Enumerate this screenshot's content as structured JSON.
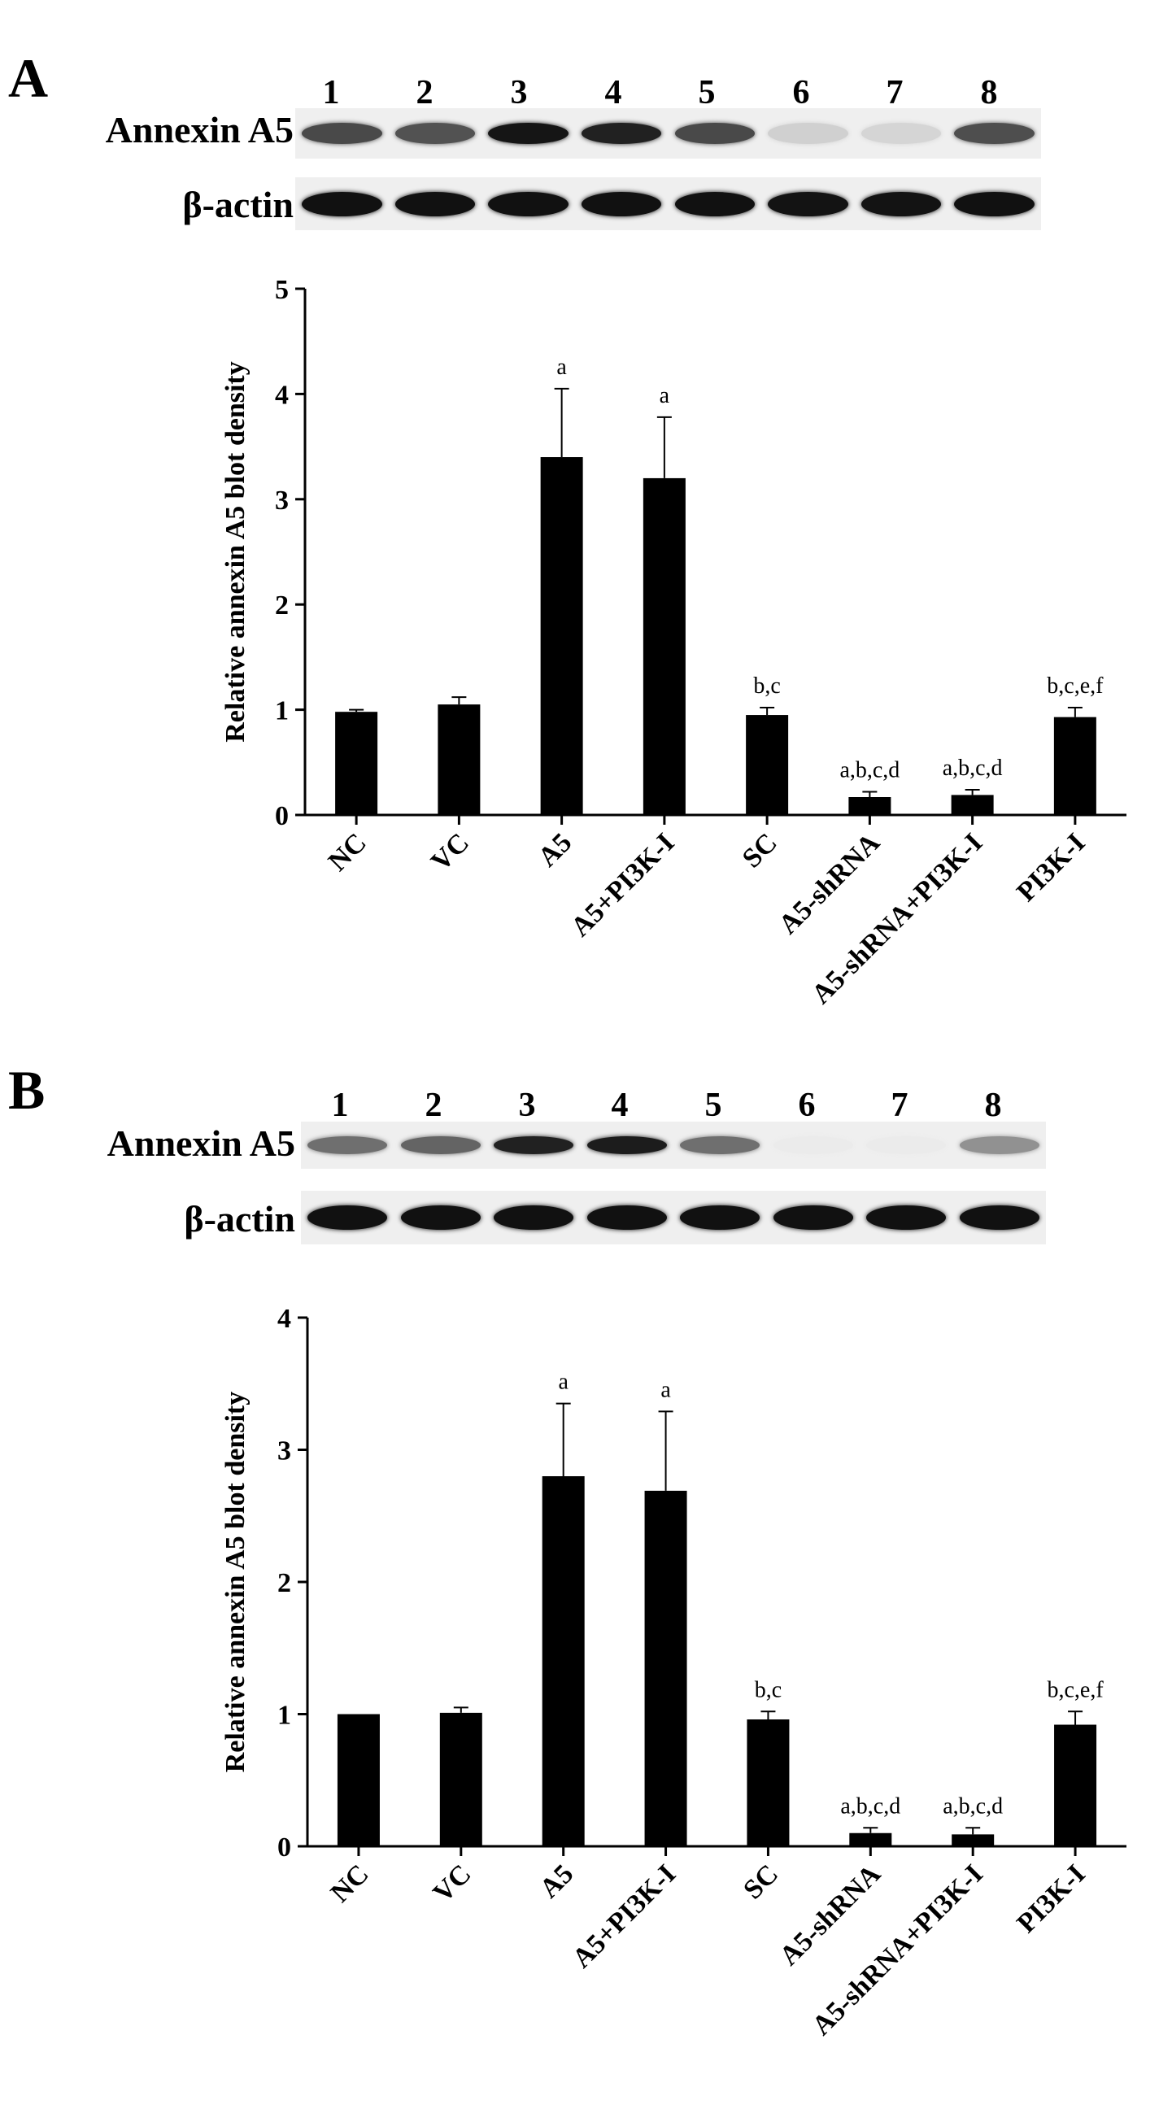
{
  "panels": [
    {
      "letter": "A",
      "lanes": [
        "1",
        "2",
        "3",
        "4",
        "5",
        "6",
        "7",
        "8"
      ],
      "blots": [
        {
          "label": "Annexin A5",
          "intensities": [
            0.72,
            0.68,
            0.95,
            0.9,
            0.72,
            0.12,
            0.1,
            0.7
          ]
        },
        {
          "label": "β-actin",
          "intensities": [
            0.97,
            0.97,
            0.97,
            0.97,
            0.97,
            0.96,
            0.96,
            0.97
          ]
        }
      ]
    },
    {
      "letter": "B",
      "lanes": [
        "1",
        "2",
        "3",
        "4",
        "5",
        "6",
        "7",
        "8"
      ],
      "blots": [
        {
          "label": "Annexin A5",
          "intensities": [
            0.55,
            0.6,
            0.9,
            0.92,
            0.55,
            0.0,
            0.0,
            0.4
          ]
        },
        {
          "label": "β-actin",
          "intensities": [
            0.97,
            0.97,
            0.97,
            0.97,
            0.97,
            0.97,
            0.97,
            0.97
          ]
        }
      ]
    }
  ],
  "chart_data": [
    {
      "type": "bar",
      "categories": [
        "NC",
        "VC",
        "A5",
        "A5+PI3K-I",
        "SC",
        "A5-shRNA",
        "A5-shRNA+PI3K-I",
        "PI3K-I"
      ],
      "values": [
        0.98,
        1.05,
        3.4,
        3.2,
        0.95,
        0.17,
        0.19,
        0.93
      ],
      "errors": [
        0.02,
        0.07,
        0.65,
        0.58,
        0.07,
        0.05,
        0.05,
        0.09
      ],
      "annotations": [
        "",
        "",
        "a",
        "a",
        "b,c",
        "a,b,c,d",
        "a,b,c,d",
        "b,c,e,f"
      ],
      "ylabel": "Relative annexin A5 blot density",
      "xlabel": "",
      "ylim": [
        0,
        5
      ],
      "yticks": [
        "0",
        "1",
        "2",
        "3",
        "4",
        "5"
      ],
      "bar_color": "#000000",
      "grid": false
    },
    {
      "type": "bar",
      "categories": [
        "NC",
        "VC",
        "A5",
        "A5+PI3K-I",
        "SC",
        "A5-shRNA",
        "A5-shRNA+PI3K-I",
        "PI3K-I"
      ],
      "values": [
        1.0,
        1.01,
        2.8,
        2.69,
        0.96,
        0.1,
        0.09,
        0.92
      ],
      "errors": [
        0.0,
        0.04,
        0.55,
        0.6,
        0.06,
        0.04,
        0.05,
        0.1
      ],
      "annotations": [
        "",
        "",
        "a",
        "a",
        "b,c",
        "a,b,c,d",
        "a,b,c,d",
        "b,c,e,f"
      ],
      "ylabel": "Relative annexin A5 blot density",
      "xlabel": "",
      "ylim": [
        0,
        4
      ],
      "yticks": [
        "0",
        "1",
        "2",
        "3",
        "4"
      ],
      "bar_color": "#000000",
      "grid": false
    }
  ]
}
